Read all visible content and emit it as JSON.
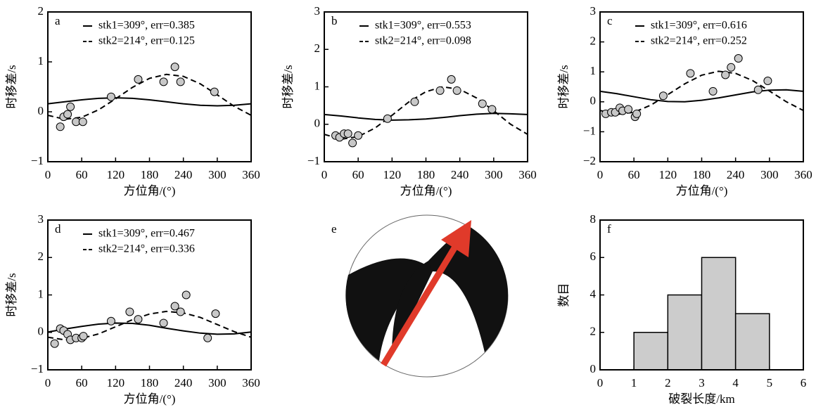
{
  "chart_data": [
    {
      "type": "scatter-fit",
      "label": "a",
      "xlabel": "方位角/(°)",
      "ylabel": "时移差/s",
      "xlim": [
        0,
        360
      ],
      "xticks": [
        0,
        60,
        120,
        180,
        240,
        300,
        360
      ],
      "ylim": [
        -1,
        2
      ],
      "yticks": [
        {
          "value": -1,
          "label": "−1"
        },
        0,
        1,
        2
      ],
      "points": {
        "color": "#c8c8c8",
        "x": [
          22,
          28,
          35,
          40,
          50,
          62,
          112,
          160,
          205,
          225,
          235,
          295
        ],
        "values": [
          -0.3,
          -0.1,
          -0.05,
          0.1,
          -0.2,
          -0.2,
          0.3,
          0.65,
          0.6,
          0.9,
          0.6,
          0.4
        ]
      },
      "series": [
        {
          "name": "stk1=309°, err=0.385",
          "style": "solid",
          "color": "#000000",
          "x": [
            0,
            30,
            60,
            90,
            120,
            150,
            180,
            210,
            240,
            270,
            300,
            330,
            360
          ],
          "values": [
            0.16,
            0.2,
            0.24,
            0.27,
            0.28,
            0.27,
            0.24,
            0.2,
            0.16,
            0.13,
            0.12,
            0.13,
            0.16
          ]
        },
        {
          "name": "stk2=214°, err=0.125",
          "style": "dashed",
          "color": "#000000",
          "x": [
            0,
            30,
            60,
            90,
            120,
            150,
            180,
            210,
            240,
            270,
            300,
            330,
            360
          ],
          "values": [
            -0.07,
            -0.15,
            -0.11,
            0.04,
            0.26,
            0.49,
            0.67,
            0.75,
            0.71,
            0.56,
            0.34,
            0.11,
            -0.07
          ]
        }
      ]
    },
    {
      "type": "scatter-fit",
      "label": "b",
      "xlabel": "方位角/(°)",
      "ylabel": "时移差/s",
      "xlim": [
        0,
        360
      ],
      "xticks": [
        0,
        60,
        120,
        180,
        240,
        300,
        360
      ],
      "ylim": [
        -1,
        3
      ],
      "yticks": [
        {
          "value": -1,
          "label": "−1"
        },
        0,
        1,
        2,
        3
      ],
      "points": {
        "color": "#c8c8c8",
        "x": [
          20,
          27,
          35,
          42,
          50,
          60,
          112,
          160,
          205,
          225,
          235,
          280,
          297
        ],
        "values": [
          -0.3,
          -0.35,
          -0.25,
          -0.25,
          -0.5,
          -0.3,
          0.15,
          0.6,
          0.9,
          1.2,
          0.9,
          0.55,
          0.4
        ]
      },
      "series": [
        {
          "name": "stk1=309°, err=0.553",
          "style": "solid",
          "color": "#000000",
          "x": [
            0,
            30,
            60,
            90,
            120,
            150,
            180,
            210,
            240,
            270,
            300,
            330,
            360
          ],
          "values": [
            0.26,
            0.22,
            0.17,
            0.13,
            0.11,
            0.12,
            0.14,
            0.18,
            0.23,
            0.27,
            0.29,
            0.28,
            0.26
          ]
        },
        {
          "name": "stk2=214°, err=0.098",
          "style": "dashed",
          "color": "#000000",
          "x": [
            0,
            30,
            60,
            90,
            120,
            150,
            180,
            210,
            240,
            270,
            300,
            330,
            360
          ],
          "values": [
            -0.27,
            -0.4,
            -0.33,
            -0.1,
            0.24,
            0.6,
            0.87,
            1.0,
            0.93,
            0.7,
            0.36,
            0.0,
            -0.27
          ]
        }
      ]
    },
    {
      "type": "scatter-fit",
      "label": "c",
      "xlabel": "方位角/(°)",
      "ylabel": "时移差/s",
      "xlim": [
        0,
        360
      ],
      "xticks": [
        0,
        60,
        120,
        180,
        240,
        300,
        360
      ],
      "ylim": [
        -2,
        3
      ],
      "yticks": [
        {
          "value": -2,
          "label": "−2"
        },
        {
          "value": -1,
          "label": "−1"
        },
        0,
        1,
        2,
        3
      ],
      "points": {
        "color": "#c8c8c8",
        "x": [
          10,
          20,
          27,
          35,
          40,
          50,
          62,
          65,
          112,
          160,
          200,
          222,
          232,
          245,
          280,
          297
        ],
        "values": [
          -0.4,
          -0.35,
          -0.35,
          -0.2,
          -0.3,
          -0.25,
          -0.5,
          -0.4,
          0.2,
          0.95,
          0.35,
          0.9,
          1.15,
          1.45,
          0.4,
          0.7
        ]
      },
      "series": [
        {
          "name": "stk1=309°, err=0.616",
          "style": "solid",
          "color": "#000000",
          "x": [
            0,
            30,
            60,
            90,
            120,
            150,
            180,
            210,
            240,
            270,
            300,
            330,
            360
          ],
          "values": [
            0.35,
            0.27,
            0.17,
            0.07,
            0.01,
            0.0,
            0.05,
            0.13,
            0.23,
            0.33,
            0.39,
            0.4,
            0.35
          ]
        },
        {
          "name": "stk2=214°, err=0.252",
          "style": "dashed",
          "color": "#000000",
          "x": [
            0,
            30,
            60,
            90,
            120,
            150,
            180,
            210,
            240,
            270,
            300,
            330,
            360
          ],
          "values": [
            -0.29,
            -0.42,
            -0.35,
            -0.11,
            0.24,
            0.6,
            0.89,
            1.02,
            0.95,
            0.71,
            0.36,
            0.0,
            -0.29
          ]
        }
      ]
    },
    {
      "type": "scatter-fit",
      "label": "d",
      "xlabel": "方位角/(°)",
      "ylabel": "时移差/s",
      "xlim": [
        0,
        360
      ],
      "xticks": [
        0,
        60,
        120,
        180,
        240,
        300,
        360
      ],
      "ylim": [
        -1,
        3
      ],
      "yticks": [
        {
          "value": -1,
          "label": "−1"
        },
        0,
        1,
        2,
        3
      ],
      "points": {
        "color": "#c8c8c8",
        "x": [
          12,
          22,
          28,
          35,
          40,
          50,
          60,
          63,
          112,
          145,
          160,
          205,
          225,
          235,
          245,
          283,
          297
        ],
        "values": [
          -0.3,
          0.1,
          0.05,
          -0.05,
          -0.2,
          -0.15,
          -0.15,
          -0.1,
          0.3,
          0.55,
          0.35,
          0.25,
          0.7,
          0.55,
          1.0,
          -0.15,
          0.5
        ]
      },
      "series": [
        {
          "name": "stk1=309°, err=0.467",
          "style": "solid",
          "color": "#000000",
          "x": [
            0,
            30,
            60,
            90,
            120,
            150,
            180,
            210,
            240,
            270,
            300,
            330,
            360
          ],
          "values": [
            0.01,
            0.09,
            0.16,
            0.22,
            0.25,
            0.24,
            0.19,
            0.11,
            0.04,
            -0.02,
            -0.05,
            -0.04,
            0.01
          ]
        },
        {
          "name": "stk2=214°, err=0.336",
          "style": "dashed",
          "color": "#000000",
          "x": [
            0,
            30,
            60,
            90,
            120,
            150,
            180,
            210,
            240,
            270,
            300,
            330,
            360
          ],
          "values": [
            -0.13,
            -0.2,
            -0.16,
            -0.04,
            0.15,
            0.34,
            0.49,
            0.56,
            0.52,
            0.4,
            0.21,
            0.02,
            -0.13
          ]
        }
      ]
    },
    {
      "type": "focal-mechanism",
      "label": "e",
      "color": "#111111",
      "arrow_color": "#e03a2a"
    },
    {
      "type": "histogram",
      "label": "f",
      "xlabel": "破裂长度/km",
      "ylabel": "数目",
      "color": "#cccccc",
      "bins": [
        1,
        2,
        3,
        4,
        5
      ],
      "counts": [
        2,
        4,
        6,
        3
      ],
      "xlim": [
        0,
        6
      ],
      "xticks": [
        0,
        1,
        2,
        3,
        4,
        5,
        6
      ],
      "ylim": [
        0,
        8
      ],
      "yticks": [
        0,
        2,
        4,
        6,
        8
      ]
    }
  ]
}
